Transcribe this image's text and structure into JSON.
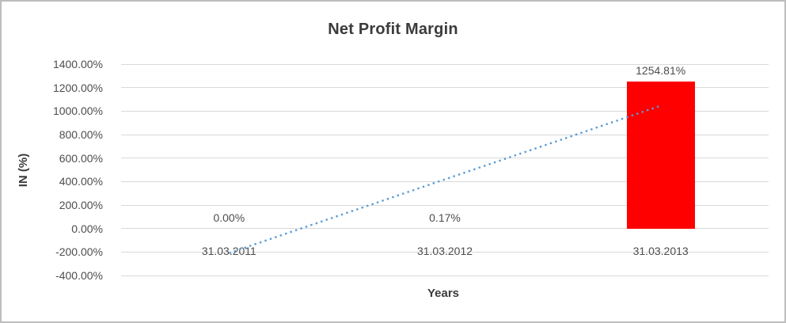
{
  "chart_data": {
    "type": "bar",
    "title": "Net Profit Margin",
    "xlabel": "Years",
    "ylabel": "IN (%)",
    "categories": [
      "31.03.2011",
      "31.03.2012",
      "31.03.2013"
    ],
    "values": [
      0,
      0.17,
      1254.81
    ],
    "data_labels": [
      "0.00%",
      "0.17%",
      "1254.81%"
    ],
    "ylim": [
      -400,
      1400
    ],
    "ytick_step": 200,
    "yticks": [
      {
        "value": 1400,
        "label": "1400.00%"
      },
      {
        "value": 1200,
        "label": "1200.00%"
      },
      {
        "value": 1000,
        "label": "1000.00%"
      },
      {
        "value": 800,
        "label": "800.00%"
      },
      {
        "value": 600,
        "label": "600.00%"
      },
      {
        "value": 400,
        "label": "400.00%"
      },
      {
        "value": 200,
        "label": "200.00%"
      },
      {
        "value": 0,
        "label": "0.00%"
      },
      {
        "value": -200,
        "label": "-200.00%"
      },
      {
        "value": -400,
        "label": "-400.00%"
      }
    ],
    "grid": true,
    "legend_position": "none",
    "bar_color": "#FF0000",
    "gridline_color": "#D9D9D9",
    "trendline": {
      "type": "linear",
      "style": "dotted",
      "color": "#5B9BD5",
      "start_value": -209.08,
      "end_value": 1045.73
    }
  }
}
